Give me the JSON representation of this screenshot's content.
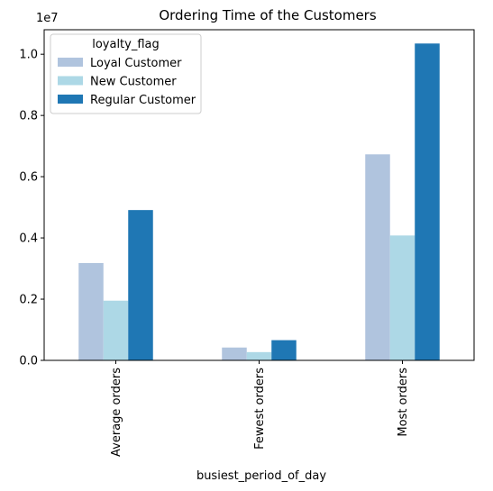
{
  "chart_data": {
    "type": "bar",
    "title": "Ordering Time of the Customers",
    "xlabel": "busiest_period_of_day",
    "ylabel": "",
    "y_offset_label": "1e7",
    "ylim": [
      0,
      1.08
    ],
    "yticks": [
      0.0,
      0.2,
      0.4,
      0.6,
      0.8,
      1.0
    ],
    "ytick_labels": [
      "0.0",
      "0.2",
      "0.4",
      "0.6",
      "0.8",
      "1.0"
    ],
    "categories": [
      "Average orders",
      "Fewest orders",
      "Most orders"
    ],
    "legend": {
      "title": "loyalty_flag",
      "position": "upper left"
    },
    "grid": false,
    "series": [
      {
        "name": "Loyal Customer",
        "color": "#b0c4de",
        "values": [
          0.318,
          0.042,
          0.673
        ]
      },
      {
        "name": "New Customer",
        "color": "#add8e6",
        "values": [
          0.195,
          0.027,
          0.408
        ]
      },
      {
        "name": "Regular Customer",
        "color": "#1f77b4",
        "values": [
          0.491,
          0.066,
          1.035
        ]
      }
    ]
  }
}
